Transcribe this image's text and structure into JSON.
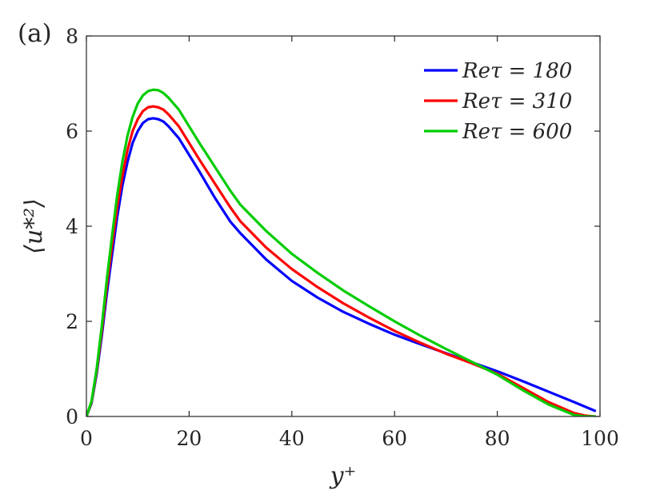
{
  "panel_label": "(a)",
  "chart_data": {
    "type": "line",
    "title": "",
    "xlabel": "y⁺",
    "ylabel": "⟨u*²⟩",
    "xlim": [
      0,
      100
    ],
    "ylim": [
      0,
      8
    ],
    "xticks": [
      0,
      20,
      40,
      60,
      80,
      100
    ],
    "yticks": [
      0,
      2,
      4,
      6,
      8
    ],
    "grid": false,
    "legend_position": "top-right",
    "series": [
      {
        "name": "Reτ = 180",
        "color": "#0000ff",
        "x": [
          0,
          1,
          2,
          3,
          4,
          5,
          6,
          7,
          8,
          9,
          10,
          11,
          12,
          13,
          14,
          15,
          16,
          18,
          20,
          22,
          25,
          28,
          30,
          35,
          40,
          45,
          50,
          55,
          60,
          65,
          70,
          75,
          80,
          85,
          90,
          95,
          99
        ],
        "y": [
          0,
          0.28,
          0.9,
          1.7,
          2.6,
          3.4,
          4.2,
          4.85,
          5.35,
          5.75,
          6.0,
          6.17,
          6.25,
          6.27,
          6.25,
          6.2,
          6.1,
          5.85,
          5.5,
          5.15,
          4.6,
          4.1,
          3.85,
          3.3,
          2.85,
          2.5,
          2.2,
          1.95,
          1.72,
          1.52,
          1.33,
          1.14,
          0.95,
          0.74,
          0.52,
          0.3,
          0.12
        ]
      },
      {
        "name": "Reτ = 310",
        "color": "#ff0000",
        "x": [
          0,
          1,
          2,
          3,
          4,
          5,
          6,
          7,
          8,
          9,
          10,
          11,
          12,
          13,
          14,
          15,
          16,
          18,
          20,
          22,
          25,
          28,
          30,
          35,
          40,
          45,
          50,
          55,
          60,
          65,
          70,
          75,
          80,
          85,
          90,
          95,
          97,
          99
        ],
        "y": [
          0,
          0.3,
          0.95,
          1.8,
          2.75,
          3.6,
          4.4,
          5.05,
          5.6,
          6.0,
          6.25,
          6.42,
          6.5,
          6.52,
          6.5,
          6.45,
          6.35,
          6.1,
          5.75,
          5.4,
          4.9,
          4.4,
          4.1,
          3.55,
          3.1,
          2.72,
          2.38,
          2.08,
          1.8,
          1.55,
          1.32,
          1.12,
          0.9,
          0.6,
          0.3,
          0.07,
          0.02,
          0
        ]
      },
      {
        "name": "Reτ = 600",
        "color": "#00cc00",
        "x": [
          0,
          1,
          2,
          3,
          4,
          5,
          6,
          7,
          8,
          9,
          10,
          11,
          12,
          13,
          14,
          15,
          16,
          18,
          20,
          22,
          25,
          28,
          30,
          35,
          40,
          45,
          50,
          55,
          60,
          65,
          70,
          75,
          80,
          85,
          90,
          95,
          97,
          99
        ],
        "y": [
          0,
          0.32,
          1.0,
          1.9,
          2.9,
          3.8,
          4.65,
          5.35,
          5.9,
          6.3,
          6.58,
          6.75,
          6.84,
          6.87,
          6.86,
          6.8,
          6.7,
          6.45,
          6.1,
          5.75,
          5.25,
          4.75,
          4.45,
          3.9,
          3.42,
          3.02,
          2.65,
          2.32,
          2.0,
          1.7,
          1.42,
          1.15,
          0.88,
          0.55,
          0.25,
          0.03,
          0,
          0
        ]
      }
    ]
  }
}
